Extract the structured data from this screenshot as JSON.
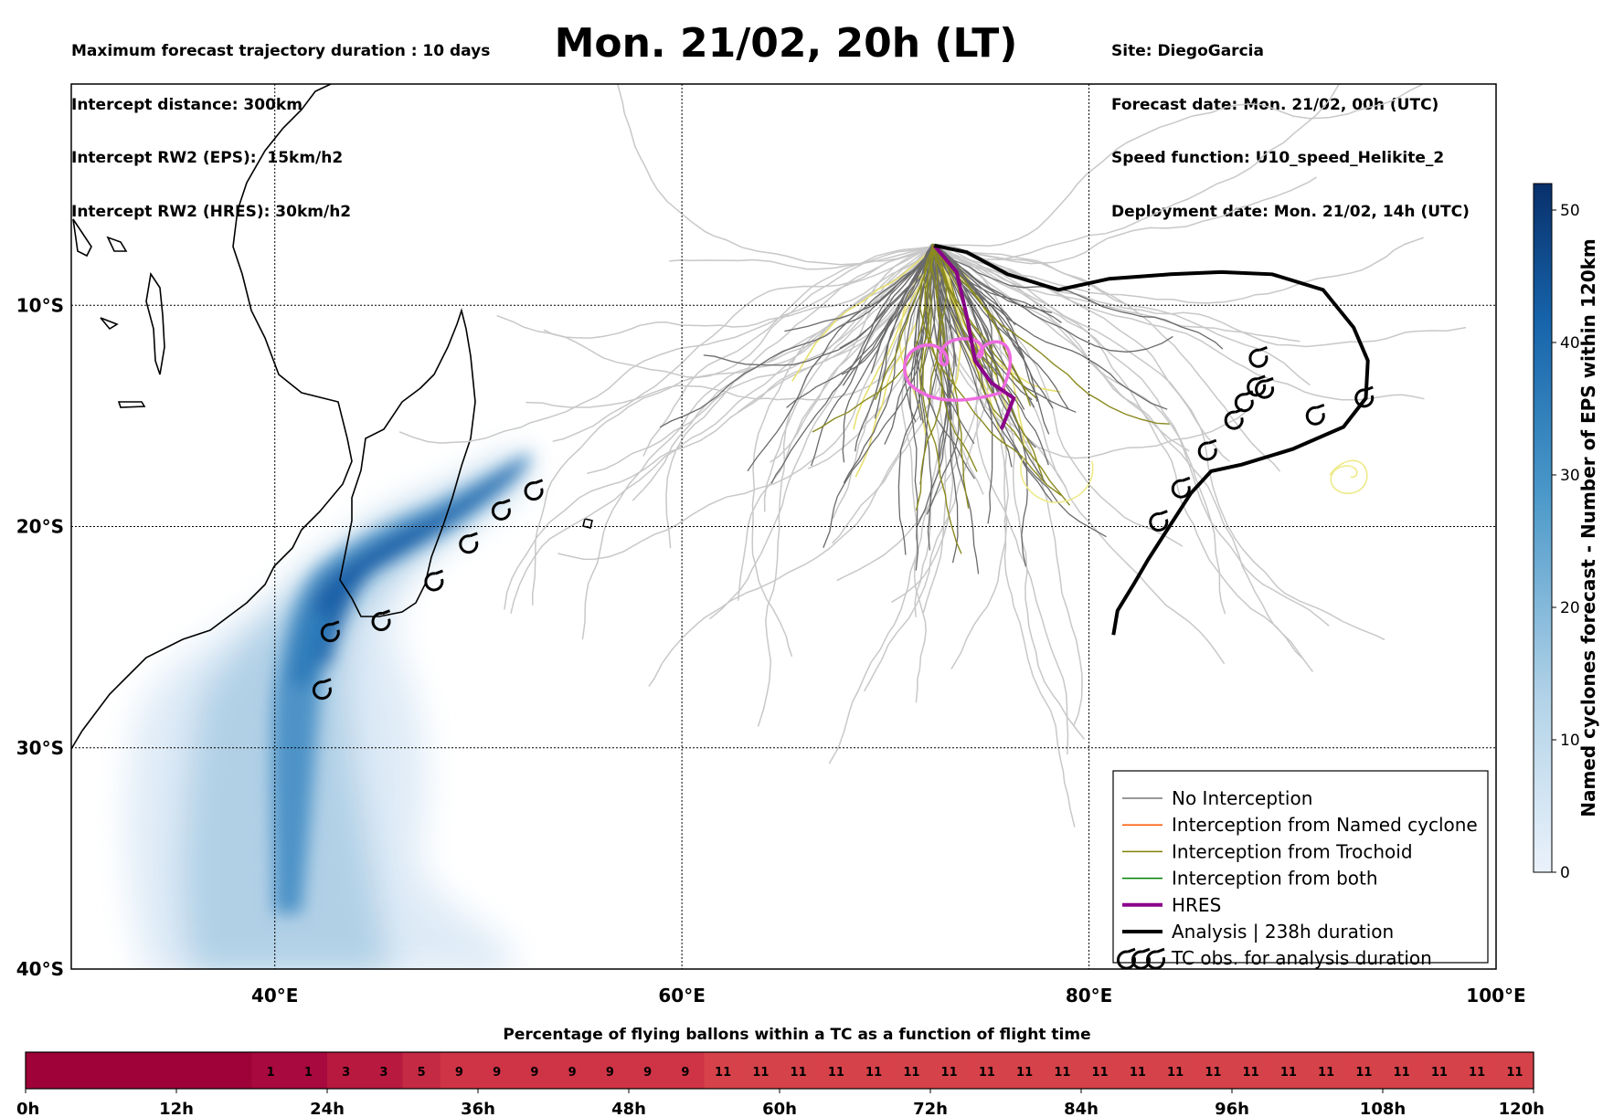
{
  "header_left": [
    "Maximum forecast trajectory duration : 10 days",
    "Intercept distance: 300km",
    "Intercept RW2 (EPS):  15km/h2",
    "Intercept RW2 (HRES): 30km/h2"
  ],
  "header_right": [
    "Site: DiegoGarcia",
    "Forecast date: Mon. 21/02, 00h (UTC)",
    "Speed function: U10_speed_Helikite_2",
    "Deployment date: Mon. 21/02, 14h (UTC)"
  ],
  "title": "Mon. 21/02, 20h (LT)",
  "map": {
    "lon_range": [
      30,
      100
    ],
    "lat_range": [
      -40,
      0
    ],
    "lat_ticks": [
      {
        "value": -10,
        "label": "10°S"
      },
      {
        "value": -20,
        "label": "20°S"
      },
      {
        "value": -30,
        "label": "30°S"
      },
      {
        "value": -40,
        "label": "40°S"
      }
    ],
    "lon_ticks": [
      {
        "value": 40,
        "label": "40°E"
      },
      {
        "value": 60,
        "label": "60°E"
      },
      {
        "value": 80,
        "label": "80°E"
      },
      {
        "value": 100,
        "label": "100°E"
      }
    ],
    "launch_site": {
      "lon": 72.4,
      "lat": -7.3
    },
    "analysis_track": [
      [
        72.4,
        -7.3
      ],
      [
        74,
        -7.6
      ],
      [
        76,
        -8.6
      ],
      [
        78.5,
        -9.3
      ],
      [
        81,
        -8.8
      ],
      [
        84,
        -8.6
      ],
      [
        86.5,
        -8.5
      ],
      [
        89,
        -8.6
      ],
      [
        91.5,
        -9.3
      ],
      [
        93,
        -11
      ],
      [
        93.7,
        -12.5
      ],
      [
        93.6,
        -14.2
      ],
      [
        92.5,
        -15.5
      ],
      [
        90,
        -16.5
      ],
      [
        87.5,
        -17.2
      ],
      [
        86,
        -17.5
      ],
      [
        85,
        -18.5
      ],
      [
        84.3,
        -19.5
      ],
      [
        83.6,
        -20.5
      ],
      [
        82.9,
        -21.5
      ],
      [
        82.2,
        -22.6
      ],
      [
        81.4,
        -23.8
      ],
      [
        81.2,
        -24.9
      ]
    ],
    "hres_track": [
      [
        72.4,
        -7.3
      ],
      [
        73.5,
        -8.5
      ],
      [
        74,
        -10.5
      ],
      [
        74.4,
        -12.5
      ],
      [
        75.2,
        -13.5
      ],
      [
        76.3,
        -14.2
      ],
      [
        75.7,
        -15.6
      ]
    ],
    "tc_obs": [
      [
        42.7,
        -24.8
      ],
      [
        45.2,
        -24.3
      ],
      [
        47.8,
        -22.5
      ],
      [
        49.5,
        -20.8
      ],
      [
        51.1,
        -19.3
      ],
      [
        52.7,
        -18.4
      ],
      [
        42.3,
        -27.4
      ],
      [
        83.4,
        -19.8
      ],
      [
        84.5,
        -18.3
      ],
      [
        85.8,
        -16.6
      ],
      [
        87.1,
        -15.2
      ],
      [
        87.6,
        -14.4
      ],
      [
        88.2,
        -13.7
      ],
      [
        88.3,
        -12.4
      ],
      [
        88.6,
        -13.8
      ],
      [
        91.1,
        -15
      ],
      [
        93.5,
        -14.2
      ]
    ]
  },
  "legend": [
    {
      "label": "No Interception",
      "color": "#777777"
    },
    {
      "label": "Interception from Named cyclone",
      "color": "#ff5500"
    },
    {
      "label": "Interception from Trochoid",
      "color": "#808000"
    },
    {
      "label": "Interception from both",
      "color": "#008000"
    },
    {
      "label": "HRES",
      "color": "#8b008b"
    },
    {
      "label": "Analysis | 238h duration",
      "color": "#000000"
    },
    {
      "label": "TC obs. for analysis duration",
      "color": "#000000",
      "icon": "cyclone-icon"
    }
  ],
  "colorbar": {
    "label": "Named cyclones forecast - Number of EPS within 120km",
    "min": 0,
    "max": 52,
    "ticks": [
      0,
      10,
      20,
      30,
      40,
      50
    ],
    "color_low": "#e8f1fa",
    "color_high": "#08306b"
  },
  "bottom_bar": {
    "title": "Percentage of flying ballons within a TC as a function of flight time",
    "values": [
      0,
      0,
      0,
      0,
      0,
      0,
      1,
      1,
      3,
      3,
      5,
      9,
      9,
      9,
      9,
      9,
      9,
      9,
      11,
      11,
      11,
      11,
      11,
      11,
      11,
      11,
      11,
      11,
      11,
      11,
      11,
      11,
      11,
      11,
      11,
      11,
      11,
      11,
      11,
      11
    ],
    "time_labels": [
      "0h",
      "12h",
      "24h",
      "36h",
      "48h",
      "60h",
      "72h",
      "84h",
      "96h",
      "108h",
      "120h"
    ]
  }
}
